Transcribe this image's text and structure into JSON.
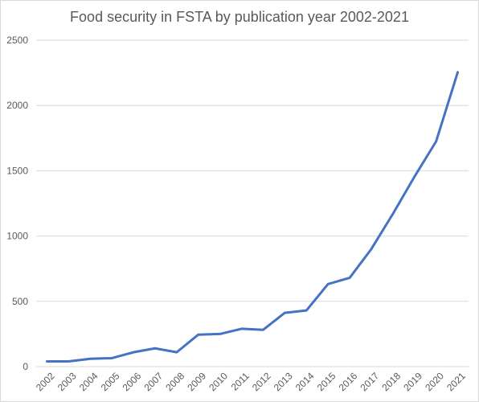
{
  "chart_data": {
    "type": "line",
    "title": "Food security in FSTA by publication year 2002-2021",
    "xlabel": "",
    "ylabel": "",
    "ylim": [
      0,
      2500
    ],
    "yticks": [
      0,
      500,
      1000,
      1500,
      2000,
      2500
    ],
    "grid": true,
    "legend": "none",
    "x": [
      "2002",
      "2003",
      "2004",
      "2005",
      "2006",
      "2007",
      "2008",
      "2009",
      "2010",
      "2011",
      "2012",
      "2013",
      "2014",
      "2015",
      "2016",
      "2017",
      "2018",
      "2019",
      "2020",
      "2021"
    ],
    "series": [
      {
        "color": "#4472c4",
        "values": [
          40,
          40,
          60,
          65,
          110,
          140,
          110,
          245,
          250,
          290,
          282,
          412,
          430,
          632,
          680,
          900,
          1170,
          1455,
          1725,
          2255
        ]
      }
    ]
  }
}
